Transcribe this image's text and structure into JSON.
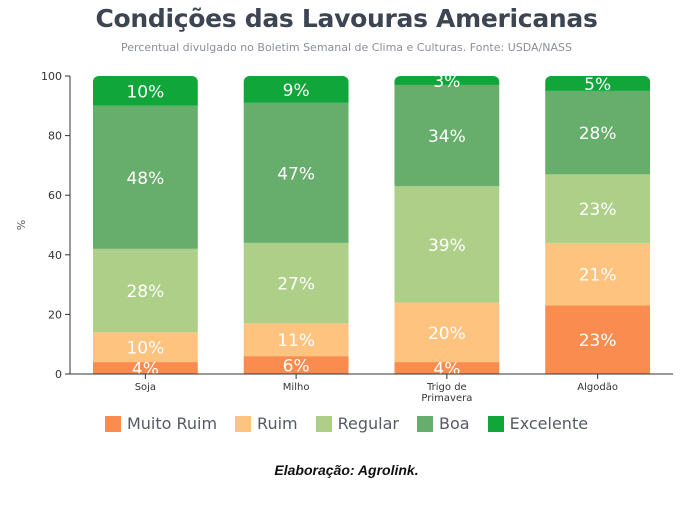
{
  "header": {
    "title": "Condições das Lavouras Americanas",
    "subtitle": "Percentual divulgado no Boletim Semanal de Clima e Culturas. Fonte: USDA/NASS"
  },
  "footer": {
    "note": "Elaboração: Agrolink."
  },
  "chart_data": {
    "type": "bar",
    "stacked": true,
    "title": "Condições das Lavouras Americanas",
    "subtitle": "Percentual divulgado no Boletim Semanal de Clima e Culturas. Fonte: USDA/NASS",
    "xlabel": "",
    "ylabel": "%",
    "ylim": [
      0,
      100
    ],
    "yticks": [
      0,
      20,
      40,
      60,
      80,
      100
    ],
    "grid": false,
    "legend_position": "bottom",
    "categories": [
      "Soja",
      "Milho",
      "Trigo de Primavera",
      "Algodão"
    ],
    "category_lines": [
      [
        "Soja"
      ],
      [
        "Milho"
      ],
      [
        "Trigo de",
        "Primavera"
      ],
      [
        "Algodão"
      ]
    ],
    "series": [
      {
        "name": "Muito Ruim",
        "color": "#fb8c50",
        "values": [
          4,
          6,
          4,
          23
        ]
      },
      {
        "name": "Ruim",
        "color": "#ffc380",
        "values": [
          10,
          11,
          20,
          21
        ]
      },
      {
        "name": "Regular",
        "color": "#adcf88",
        "values": [
          28,
          27,
          39,
          23
        ]
      },
      {
        "name": "Boa",
        "color": "#67ad6c",
        "values": [
          48,
          47,
          34,
          28
        ]
      },
      {
        "name": "Excelente",
        "color": "#10a63a",
        "values": [
          10,
          9,
          3,
          5
        ]
      }
    ]
  }
}
